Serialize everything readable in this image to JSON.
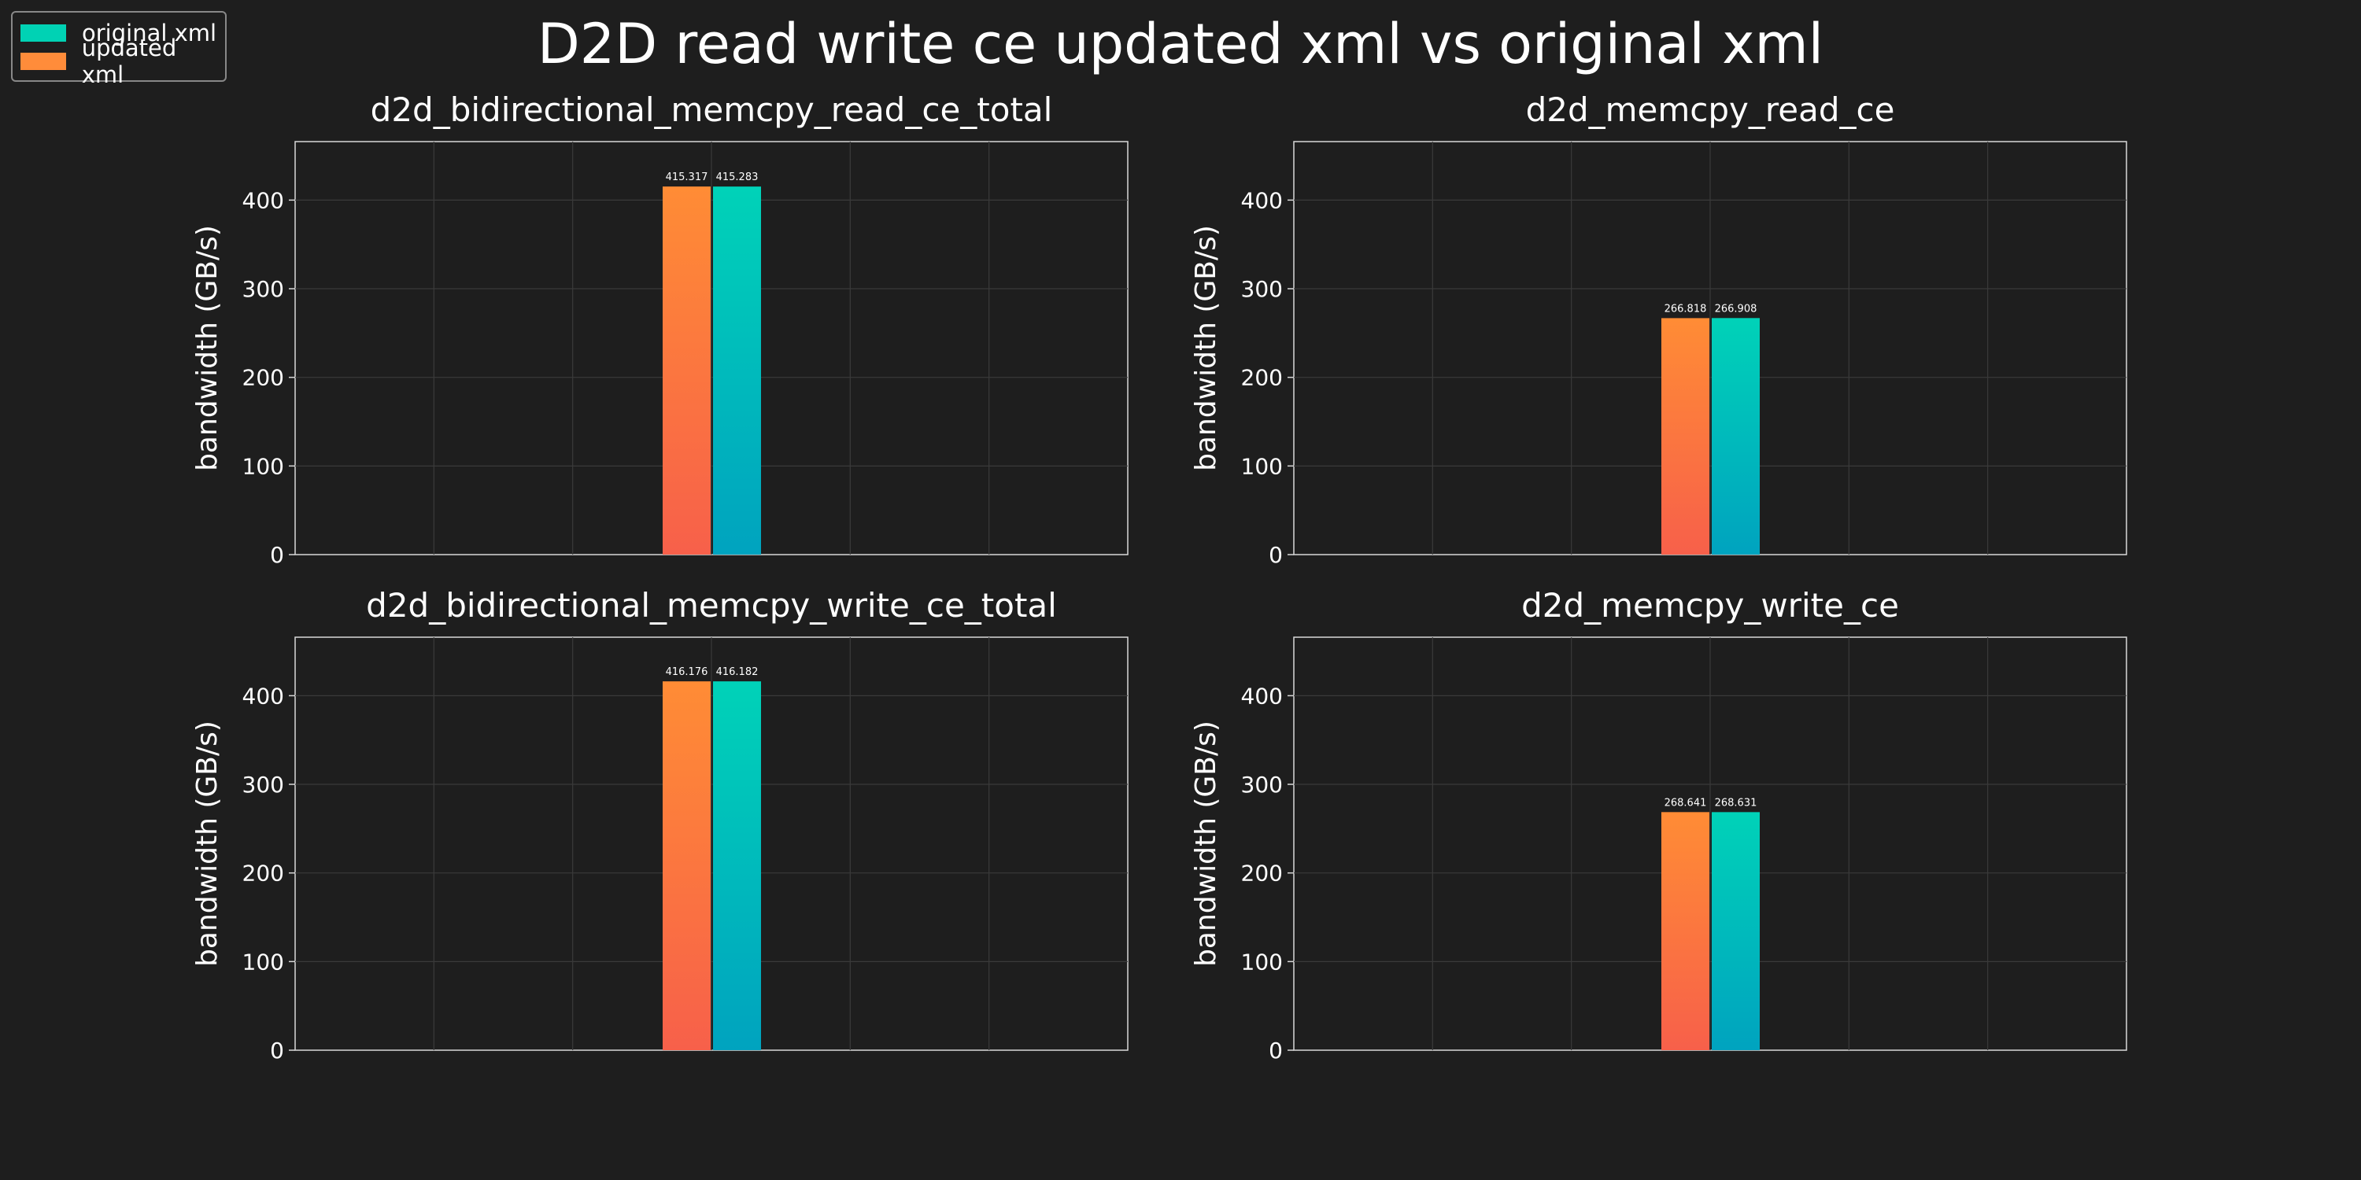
{
  "title": "D2D read write ce updated xml vs original xml",
  "legend": {
    "placement": "top-left",
    "items": [
      {
        "label": "original xml",
        "color": "#00d2b4"
      },
      {
        "label": "updated xml",
        "color": "#ff8c3a"
      }
    ]
  },
  "colors": {
    "background": "#1e1e1e",
    "updated_top": "#ff8c35",
    "updated_bottom": "#f7604a",
    "original_top": "#00d2b8",
    "original_bottom": "#00a3bf"
  },
  "chart_data": [
    {
      "type": "bar",
      "title": "d2d_bidirectional_memcpy_read_ce_total",
      "ylabel": "bandwidth (GB/s)",
      "xlabel": "",
      "ylim": [
        0,
        466
      ],
      "yticks": [
        0,
        100,
        200,
        300,
        400
      ],
      "grid": true,
      "series": [
        {
          "name": "updated xml",
          "values": [
            415.317
          ],
          "labels": [
            "415.317"
          ]
        },
        {
          "name": "original xml",
          "values": [
            415.283
          ],
          "labels": [
            "415.283"
          ]
        }
      ]
    },
    {
      "type": "bar",
      "title": "d2d_memcpy_read_ce",
      "ylabel": "bandwidth (GB/s)",
      "xlabel": "",
      "ylim": [
        0,
        466
      ],
      "yticks": [
        0,
        100,
        200,
        300,
        400
      ],
      "grid": true,
      "series": [
        {
          "name": "updated xml",
          "values": [
            266.818
          ],
          "labels": [
            "266.818"
          ]
        },
        {
          "name": "original xml",
          "values": [
            266.908
          ],
          "labels": [
            "266.908"
          ]
        }
      ]
    },
    {
      "type": "bar",
      "title": "d2d_bidirectional_memcpy_write_ce_total",
      "ylabel": "bandwidth (GB/s)",
      "xlabel": "",
      "ylim": [
        0,
        466
      ],
      "yticks": [
        0,
        100,
        200,
        300,
        400
      ],
      "grid": true,
      "series": [
        {
          "name": "updated xml",
          "values": [
            416.176
          ],
          "labels": [
            "416.176"
          ]
        },
        {
          "name": "original xml",
          "values": [
            416.182
          ],
          "labels": [
            "416.182"
          ]
        }
      ]
    },
    {
      "type": "bar",
      "title": "d2d_memcpy_write_ce",
      "ylabel": "bandwidth (GB/s)",
      "xlabel": "",
      "ylim": [
        0,
        466
      ],
      "yticks": [
        0,
        100,
        200,
        300,
        400
      ],
      "grid": true,
      "series": [
        {
          "name": "updated xml",
          "values": [
            268.641
          ],
          "labels": [
            "268.641"
          ]
        },
        {
          "name": "original xml",
          "values": [
            268.631
          ],
          "labels": [
            "268.631"
          ]
        }
      ]
    }
  ]
}
